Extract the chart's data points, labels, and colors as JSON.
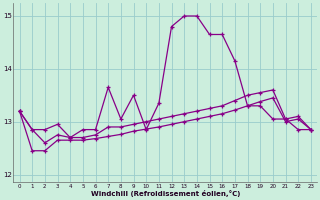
{
  "x": [
    0,
    1,
    2,
    3,
    4,
    5,
    6,
    7,
    8,
    9,
    10,
    11,
    12,
    13,
    14,
    15,
    16,
    17,
    18,
    19,
    20,
    21,
    22,
    23
  ],
  "y_peak": [
    13.2,
    12.85,
    12.85,
    12.95,
    12.7,
    12.85,
    12.85,
    13.65,
    13.05,
    13.5,
    12.85,
    13.35,
    14.8,
    15.0,
    15.0,
    14.65,
    14.65,
    14.15,
    13.3,
    13.3,
    13.05,
    13.05,
    12.85,
    12.85
  ],
  "y_mid": [
    13.2,
    12.85,
    12.6,
    12.75,
    12.7,
    12.7,
    12.75,
    12.9,
    12.9,
    12.95,
    13.0,
    13.05,
    13.1,
    13.15,
    13.2,
    13.25,
    13.3,
    13.4,
    13.5,
    13.55,
    13.6,
    13.05,
    13.1,
    12.85
  ],
  "y_bot": [
    13.2,
    12.45,
    12.45,
    12.65,
    12.65,
    12.65,
    12.68,
    12.72,
    12.76,
    12.82,
    12.86,
    12.9,
    12.95,
    13.0,
    13.05,
    13.1,
    13.15,
    13.22,
    13.3,
    13.38,
    13.45,
    13.0,
    13.05,
    12.85
  ],
  "xlabel": "Windchill (Refroidissement éolien,°C)",
  "bg_color": "#cceedd",
  "line_color": "#880088",
  "grid_color": "#99cccc",
  "ylim": [
    11.85,
    15.25
  ],
  "xlim": [
    -0.5,
    23.5
  ]
}
